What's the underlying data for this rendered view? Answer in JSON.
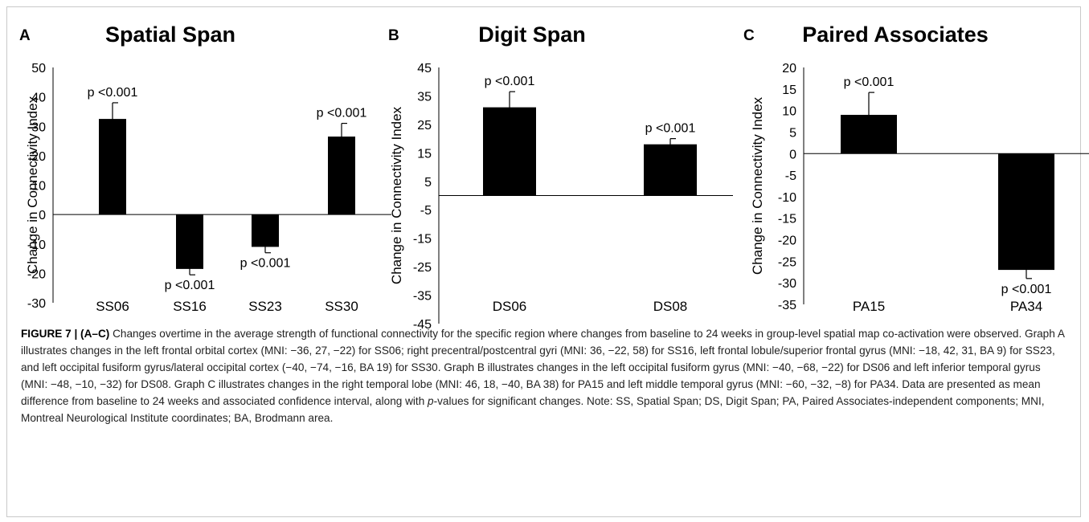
{
  "chart_data": [
    {
      "type": "bar",
      "panel": "A",
      "title": "Spatial Span",
      "ylabel": "Change in Connectivity Index",
      "categories": [
        "SS06",
        "SS16",
        "SS23",
        "SS30"
      ],
      "values": [
        32.5,
        -18.5,
        -11,
        26.5
      ],
      "error": [
        5.5,
        2,
        2,
        4.5
      ],
      "annotations": [
        "p <0.001",
        "p <0.001",
        "p <0.001",
        "p <0.001"
      ],
      "ylim": [
        -30,
        50
      ],
      "yticks": [
        50,
        40,
        30,
        20,
        10,
        0,
        -10,
        -20,
        -30
      ],
      "bar_color": "#000000"
    },
    {
      "type": "bar",
      "panel": "B",
      "title": "Digit Span",
      "ylabel": "Change in Connectivity Index",
      "categories": [
        "DS06",
        "DS08"
      ],
      "values": [
        31,
        18
      ],
      "error": [
        5.5,
        2
      ],
      "annotations": [
        "p <0.001",
        "p <0.001"
      ],
      "ylim": [
        -45,
        45
      ],
      "yticks": [
        45,
        35,
        25,
        15,
        5,
        -5,
        -15,
        -25,
        -35,
        -45
      ],
      "bar_color": "#000000"
    },
    {
      "type": "bar",
      "panel": "C",
      "title": "Paired Associates",
      "ylabel": "Change in Connectivity Index",
      "categories": [
        "PA15",
        "PA34"
      ],
      "values": [
        9,
        -27
      ],
      "error": [
        5.2,
        2
      ],
      "annotations": [
        "p <0.001",
        "p <0.001"
      ],
      "ylim": [
        -35,
        20
      ],
      "yticks": [
        20,
        15,
        10,
        5,
        0,
        -5,
        -10,
        -15,
        -20,
        -25,
        -30,
        -35
      ],
      "bar_color": "#000000"
    }
  ],
  "caption": {
    "label": "FIGURE 7 | (A–C)",
    "part1": " Changes overtime in the average strength of functional connectivity for the specific region where changes from baseline to 24 weeks in group-level spatial map co-activation were observed. Graph A illustrates changes in the left frontal orbital cortex (MNI: −36, 27, −22) for SS06; right precentral/postcentral gyri (MNI: 36, −22, 58) for SS16, left frontal lobule/superior frontal gyrus (MNI: −18, 42, 31, BA 9) for SS23, and left occipital fusiform gyrus/lateral occipital cortex (−40, −74, −16, BA 19) for SS30. Graph B illustrates changes in the left occipital fusiform gyrus (MNI: −40, −68, −22) for DS06 and left inferior temporal gyrus (MNI: −48, −10, −32) for DS08. Graph C illustrates changes in the right temporal lobe (MNI: 46, 18, −40, BA 38) for PA15 and left middle temporal gyrus (MNI: −60, −32, −8) for PA34. Data are presented as mean difference from baseline to 24 weeks and associated confidence interval, along with ",
    "italic": "p",
    "part2": "-values for significant changes. Note: SS, Spatial Span; DS, Digit Span; PA, Paired Associates-independent components; MNI, Montreal Neurological Institute coordinates; BA, Brodmann area."
  }
}
